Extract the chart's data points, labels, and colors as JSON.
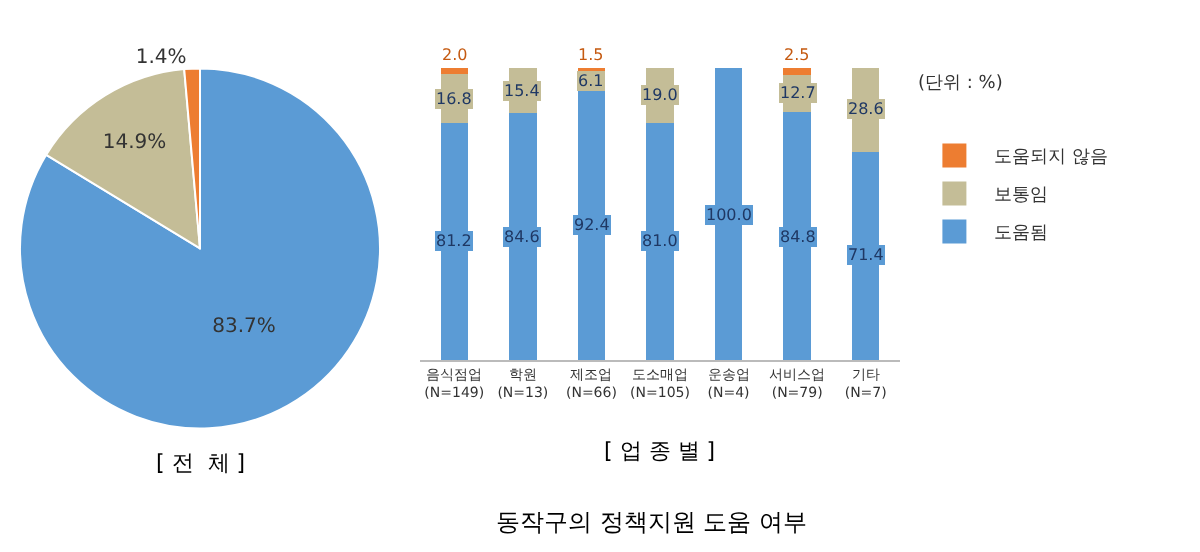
{
  "chart_data": [
    {
      "type": "pie",
      "title": "[ 전  체 ]",
      "categories": [
        null,
        null,
        null
      ],
      "values": [
        83.7,
        14.9,
        1.4
      ],
      "colors": [
        "#5b9bd5",
        "#c4bd97",
        "#ed7d31"
      ],
      "value_labels": [
        "83.7%",
        "14.9%",
        "1.4%"
      ],
      "legend": false
    },
    {
      "type": "bar",
      "stacked": true,
      "title": "동작구의 정책지원 도움 여부",
      "xlabel": "[ 업 종 별 ]",
      "annotations": [
        "(단위 : %)"
      ],
      "categories": [
        "음식점업\n(N=149)",
        "학원\n(N=13)",
        "제조업\n(N=66)",
        "도소매업\n(N=105)",
        "운송업\n(N=4)",
        "서비스업\n(N=79)",
        "기타\n(N=7)"
      ],
      "ylim": [
        0,
        100
      ],
      "tick_labels": "x",
      "legend": "right",
      "grid": false,
      "series": [
        {
          "name": "도움됨",
          "color": "#5b9bd5",
          "values": [
            81.2,
            84.6,
            92.4,
            81.0,
            100.0,
            84.8,
            71.4
          ],
          "value_labels": [
            "81.2",
            "84.6",
            "92.4",
            "81.0",
            "100.0",
            "84.8",
            "71.4"
          ]
        },
        {
          "name": "보통임",
          "color": "#c4bd97",
          "values": [
            16.8,
            15.4,
            6.1,
            19.0,
            null,
            12.7,
            28.6
          ],
          "value_labels": [
            "16.8",
            "15.4",
            "6.1",
            "19.0",
            null,
            "12.7",
            "28.6"
          ]
        },
        {
          "name": "도움되지 않음",
          "color": "#ed7d31",
          "values": [
            2.0,
            null,
            1.5,
            null,
            null,
            2.5,
            null
          ],
          "value_labels": [
            "2.0",
            null,
            "1.5",
            null,
            null,
            "2.5",
            null
          ]
        }
      ]
    }
  ]
}
